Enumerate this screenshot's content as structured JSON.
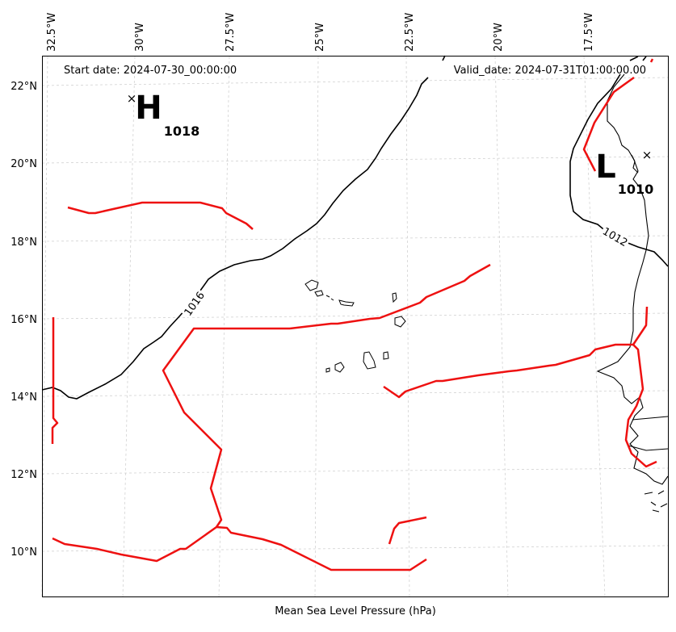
{
  "map": {
    "start_date": "Start date: 2024-07-30_00:00:00",
    "valid_date": "Valid_date: 2024-07-31T01:00:00.00",
    "caption": "Mean Sea Level Pressure (hPa)",
    "lon_labels": [
      "32.5°W",
      "30°W",
      "27.5°W",
      "25°W",
      "22.5°W",
      "20°W",
      "17.5°W"
    ],
    "lat_labels": [
      "22°N",
      "20°N",
      "18°N",
      "16°N",
      "14°N",
      "12°N",
      "10°N"
    ],
    "contour_labels": [
      "1016",
      "1012"
    ],
    "high": {
      "symbol": "H",
      "value": "1018"
    },
    "low": {
      "symbol": "L",
      "value": "1010"
    },
    "colors": {
      "isobar": "#000000",
      "front": "#ee1111",
      "grid": "#cccccc",
      "coast": "#000000"
    }
  }
}
